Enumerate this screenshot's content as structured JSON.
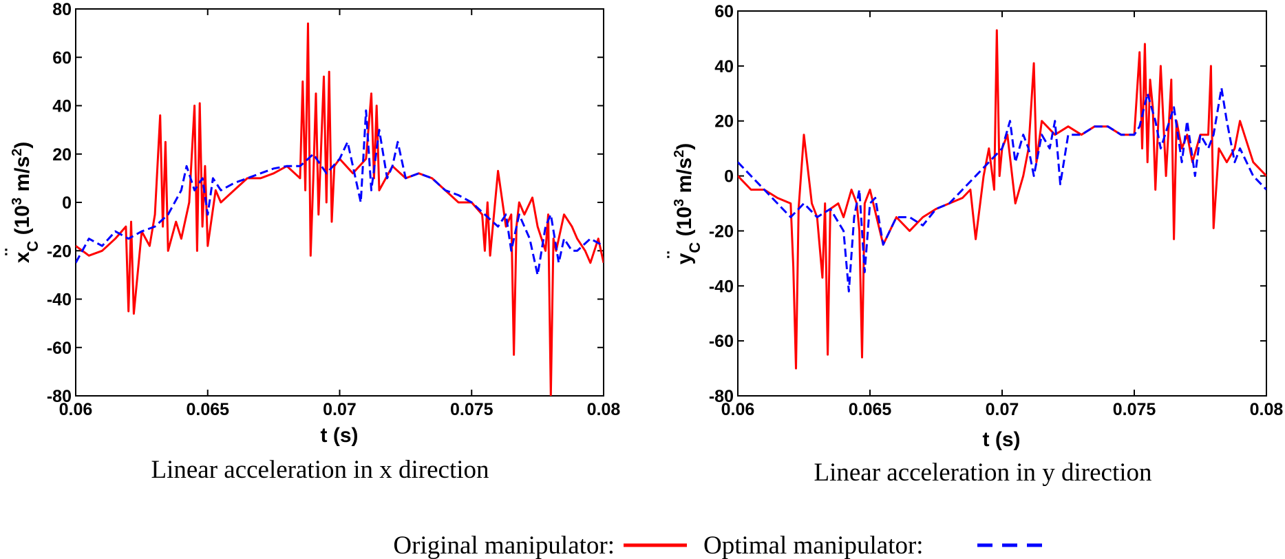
{
  "chart_data": [
    {
      "type": "line",
      "caption": "Linear acceleration in x direction",
      "xlabel": "t (s)",
      "ylabel": {
        "prefix": "x",
        "subscript": "C",
        "overdot": "¨",
        "unit_open": " (10",
        "unit_exp": "3",
        "unit_mid": " m/s",
        "unit_exp2": "2",
        "unit_close": ")"
      },
      "xlim": [
        0.06,
        0.08
      ],
      "ylim": [
        -80,
        80
      ],
      "xticks": [
        "0.06",
        "0.065",
        "0.07",
        "0.075",
        "0.08"
      ],
      "xtick_values": [
        0.06,
        0.065,
        0.07,
        0.075,
        0.08
      ],
      "yticks": [
        "80",
        "60",
        "40",
        "20",
        "0",
        "-20",
        "-40",
        "-60",
        "-80"
      ],
      "ytick_values": [
        80,
        60,
        40,
        20,
        0,
        -20,
        -40,
        -60,
        -80
      ],
      "series": [
        {
          "name": "Original manipulator",
          "color": "#ff0000",
          "style": "solid",
          "x": [
            0.06,
            0.0605,
            0.061,
            0.0615,
            0.0619,
            0.062,
            0.0621,
            0.0622,
            0.0625,
            0.0628,
            0.063,
            0.0632,
            0.0633,
            0.0634,
            0.0635,
            0.0638,
            0.064,
            0.0643,
            0.0645,
            0.0646,
            0.0647,
            0.0648,
            0.0649,
            0.065,
            0.0653,
            0.0655,
            0.066,
            0.0665,
            0.067,
            0.0675,
            0.068,
            0.0685,
            0.0686,
            0.0687,
            0.0688,
            0.0689,
            0.069,
            0.0691,
            0.0692,
            0.0694,
            0.0695,
            0.0696,
            0.0697,
            0.0698,
            0.07,
            0.0705,
            0.071,
            0.0712,
            0.0713,
            0.0714,
            0.0715,
            0.072,
            0.0725,
            0.073,
            0.0735,
            0.074,
            0.0745,
            0.075,
            0.0754,
            0.0755,
            0.0756,
            0.0757,
            0.076,
            0.0763,
            0.0765,
            0.0766,
            0.0767,
            0.0768,
            0.077,
            0.0773,
            0.0775,
            0.0778,
            0.0779,
            0.078,
            0.0781,
            0.0782,
            0.0785,
            0.0788,
            0.079,
            0.0793,
            0.0795,
            0.0798,
            0.08
          ],
          "y": [
            -18,
            -22,
            -20,
            -15,
            -10,
            -45,
            -8,
            -46,
            -12,
            -18,
            -5,
            36,
            -10,
            25,
            -20,
            -8,
            -15,
            0,
            40,
            -20,
            41,
            -10,
            15,
            -18,
            5,
            0,
            5,
            10,
            10,
            12,
            15,
            10,
            50,
            5,
            74,
            -22,
            10,
            45,
            -5,
            52,
            0,
            54,
            -8,
            15,
            18,
            12,
            18,
            45,
            10,
            40,
            5,
            15,
            10,
            12,
            10,
            5,
            0,
            0,
            -5,
            -20,
            0,
            -22,
            13,
            -10,
            -5,
            -63,
            -10,
            0,
            -5,
            2,
            -10,
            -20,
            -5,
            -80,
            -15,
            -20,
            -5,
            -10,
            -15,
            -20,
            -25,
            -15,
            -25
          ]
        },
        {
          "name": "Optimal manipulator",
          "color": "#0000ff",
          "style": "dashed",
          "x": [
            0.06,
            0.0605,
            0.061,
            0.0615,
            0.062,
            0.0625,
            0.063,
            0.0635,
            0.064,
            0.0642,
            0.0645,
            0.0648,
            0.065,
            0.0652,
            0.0655,
            0.066,
            0.0665,
            0.067,
            0.0675,
            0.068,
            0.0685,
            0.069,
            0.0695,
            0.07,
            0.0703,
            0.0705,
            0.0708,
            0.071,
            0.0712,
            0.0715,
            0.0718,
            0.072,
            0.0722,
            0.0725,
            0.073,
            0.0735,
            0.074,
            0.0745,
            0.075,
            0.0755,
            0.076,
            0.0763,
            0.0765,
            0.0768,
            0.077,
            0.0772,
            0.0775,
            0.0778,
            0.078,
            0.0783,
            0.0785,
            0.0788,
            0.079,
            0.0795,
            0.08
          ],
          "y": [
            -25,
            -15,
            -18,
            -12,
            -15,
            -12,
            -10,
            -5,
            5,
            15,
            5,
            10,
            -5,
            10,
            5,
            8,
            10,
            12,
            14,
            15,
            15,
            20,
            12,
            18,
            25,
            15,
            0,
            38,
            5,
            30,
            10,
            15,
            25,
            10,
            12,
            10,
            5,
            3,
            0,
            -5,
            -10,
            -5,
            -20,
            -5,
            -10,
            -15,
            -30,
            -10,
            -5,
            -25,
            -15,
            -20,
            -20,
            -15,
            -18
          ]
        }
      ]
    },
    {
      "type": "line",
      "caption": "Linear acceleration in y direction",
      "xlabel": "t (s)",
      "ylabel": {
        "prefix": "y",
        "subscript": "C",
        "overdot": "¨",
        "unit_open": " (10",
        "unit_exp": "3",
        "unit_mid": " m/s",
        "unit_exp2": "2",
        "unit_close": ")"
      },
      "xlim": [
        0.06,
        0.08
      ],
      "ylim": [
        -80,
        60
      ],
      "xticks": [
        "0.06",
        "0.065",
        "0.07",
        "0.075",
        "0.08"
      ],
      "xtick_values": [
        0.06,
        0.065,
        0.07,
        0.075,
        0.08
      ],
      "yticks": [
        "60",
        "40",
        "20",
        "0",
        "-20",
        "-40",
        "-60",
        "-80"
      ],
      "ytick_values": [
        60,
        40,
        20,
        0,
        -20,
        -40,
        -60,
        -80
      ],
      "series": [
        {
          "name": "Original manipulator",
          "color": "#ff0000",
          "style": "solid",
          "x": [
            0.06,
            0.0605,
            0.061,
            0.0615,
            0.062,
            0.0621,
            0.0622,
            0.0623,
            0.0625,
            0.0628,
            0.063,
            0.0632,
            0.0633,
            0.0634,
            0.0635,
            0.0638,
            0.064,
            0.0643,
            0.0645,
            0.0646,
            0.0647,
            0.0648,
            0.065,
            0.0655,
            0.066,
            0.0665,
            0.067,
            0.0675,
            0.068,
            0.0685,
            0.0688,
            0.069,
            0.0693,
            0.0695,
            0.0697,
            0.0698,
            0.0699,
            0.07,
            0.0702,
            0.0705,
            0.0708,
            0.071,
            0.0712,
            0.0713,
            0.0715,
            0.072,
            0.0725,
            0.073,
            0.0735,
            0.074,
            0.0745,
            0.075,
            0.0752,
            0.0753,
            0.0754,
            0.0755,
            0.0756,
            0.0757,
            0.0758,
            0.076,
            0.0762,
            0.0764,
            0.0765,
            0.0766,
            0.0768,
            0.077,
            0.0772,
            0.0775,
            0.0778,
            0.0779,
            0.078,
            0.0782,
            0.0785,
            0.0788,
            0.079,
            0.0795,
            0.08
          ],
          "y": [
            0,
            -5,
            -5,
            -8,
            -10,
            -33,
            -70,
            -12,
            15,
            -10,
            -15,
            -37,
            -10,
            -65,
            -12,
            -10,
            -15,
            -5,
            -10,
            -20,
            -66,
            -10,
            -5,
            -25,
            -15,
            -20,
            -15,
            -12,
            -10,
            -8,
            -5,
            -23,
            0,
            10,
            -5,
            53,
            0,
            10,
            15,
            -10,
            0,
            10,
            41,
            5,
            20,
            15,
            18,
            15,
            18,
            18,
            15,
            15,
            45,
            10,
            48,
            5,
            35,
            25,
            -5,
            40,
            0,
            35,
            -23,
            20,
            10,
            15,
            5,
            15,
            15,
            40,
            -19,
            10,
            5,
            10,
            20,
            5,
            0
          ]
        },
        {
          "name": "Optimal manipulator",
          "color": "#0000ff",
          "style": "dashed",
          "x": [
            0.06,
            0.0605,
            0.061,
            0.0615,
            0.062,
            0.0625,
            0.063,
            0.0635,
            0.064,
            0.0642,
            0.0644,
            0.0646,
            0.0648,
            0.065,
            0.0652,
            0.0655,
            0.066,
            0.0665,
            0.067,
            0.0675,
            0.068,
            0.0685,
            0.069,
            0.0695,
            0.07,
            0.0703,
            0.0705,
            0.0708,
            0.071,
            0.0712,
            0.0715,
            0.0718,
            0.072,
            0.0722,
            0.0725,
            0.073,
            0.0735,
            0.074,
            0.0745,
            0.075,
            0.0752,
            0.0755,
            0.0758,
            0.076,
            0.0765,
            0.0768,
            0.077,
            0.0773,
            0.0775,
            0.0778,
            0.078,
            0.0783,
            0.0785,
            0.0788,
            0.079,
            0.0795,
            0.08
          ],
          "y": [
            5,
            0,
            -5,
            -10,
            -15,
            -10,
            -15,
            -12,
            -20,
            -42,
            -15,
            -5,
            -35,
            -10,
            -8,
            -25,
            -15,
            -15,
            -18,
            -12,
            -10,
            -5,
            0,
            5,
            10,
            20,
            5,
            15,
            10,
            0,
            15,
            10,
            20,
            -3,
            15,
            15,
            18,
            18,
            15,
            15,
            18,
            30,
            20,
            10,
            25,
            5,
            20,
            0,
            15,
            10,
            15,
            32,
            20,
            5,
            10,
            0,
            -5
          ]
        }
      ]
    }
  ],
  "legend": {
    "items": [
      {
        "label": "Original manipulator:",
        "color": "#ff0000",
        "style": "solid"
      },
      {
        "label": "Optimal manipulator:",
        "color": "#0000ff",
        "style": "dashed"
      }
    ]
  }
}
